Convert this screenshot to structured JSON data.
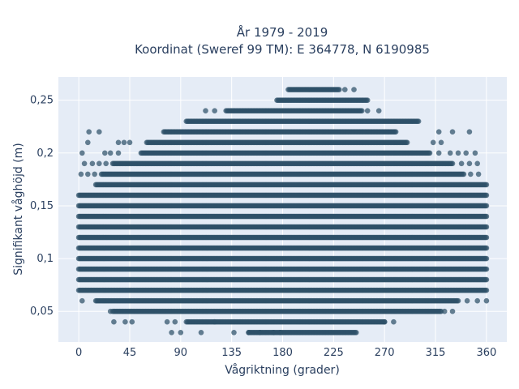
{
  "chart_data": {
    "type": "scatter",
    "title_lines": [
      "År 1979 - 2019",
      "Koordinat (Sweref 99 TM): E 364778, N 6190985"
    ],
    "xlabel": "Vågriktning (grader)",
    "ylabel": "Signifikant våghöjd (m)",
    "xlim": [
      -18,
      378
    ],
    "ylim": [
      0.021,
      0.272
    ],
    "x_ticks": [
      0,
      45,
      90,
      135,
      180,
      225,
      270,
      315,
      360
    ],
    "x_tick_labels": [
      "0",
      "45",
      "90",
      "135",
      "180",
      "225",
      "270",
      "315",
      "360"
    ],
    "y_ticks": [
      0.05,
      0.1,
      0.15,
      0.2,
      0.25
    ],
    "y_tick_labels": [
      "0,05",
      "0,1",
      "0,15",
      "0,2",
      "0,25"
    ],
    "grid": true,
    "marker_color": "#2e5168",
    "background_color": "#e5ecf6",
    "bands": [
      {
        "y": 0.03,
        "x_min": 150,
        "x_max": 245
      },
      {
        "y": 0.04,
        "x_min": 95,
        "x_max": 270
      },
      {
        "y": 0.05,
        "x_min": 30,
        "x_max": 320
      },
      {
        "y": 0.06,
        "x_min": 15,
        "x_max": 335
      },
      {
        "y": 0.07,
        "x_min": 0,
        "x_max": 360
      },
      {
        "y": 0.08,
        "x_min": 0,
        "x_max": 360
      },
      {
        "y": 0.09,
        "x_min": 0,
        "x_max": 360
      },
      {
        "y": 0.1,
        "x_min": 0,
        "x_max": 360
      },
      {
        "y": 0.11,
        "x_min": 0,
        "x_max": 360
      },
      {
        "y": 0.12,
        "x_min": 0,
        "x_max": 360
      },
      {
        "y": 0.13,
        "x_min": 0,
        "x_max": 360
      },
      {
        "y": 0.14,
        "x_min": 0,
        "x_max": 360
      },
      {
        "y": 0.15,
        "x_min": 0,
        "x_max": 360
      },
      {
        "y": 0.16,
        "x_min": 0,
        "x_max": 360
      },
      {
        "y": 0.17,
        "x_min": 15,
        "x_max": 360
      },
      {
        "y": 0.18,
        "x_min": 20,
        "x_max": 340
      },
      {
        "y": 0.19,
        "x_min": 30,
        "x_max": 330
      },
      {
        "y": 0.2,
        "x_min": 55,
        "x_max": 310
      },
      {
        "y": 0.21,
        "x_min": 60,
        "x_max": 290
      },
      {
        "y": 0.22,
        "x_min": 75,
        "x_max": 280
      },
      {
        "y": 0.23,
        "x_min": 95,
        "x_max": 300
      },
      {
        "y": 0.24,
        "x_min": 130,
        "x_max": 250
      },
      {
        "y": 0.25,
        "x_min": 175,
        "x_max": 255
      },
      {
        "y": 0.26,
        "x_min": 185,
        "x_max": 230
      }
    ],
    "sparse_points": [
      {
        "x": 82,
        "y": 0.03
      },
      {
        "x": 90,
        "y": 0.03
      },
      {
        "x": 108,
        "y": 0.03
      },
      {
        "x": 137,
        "y": 0.03
      },
      {
        "x": 150,
        "y": 0.03
      },
      {
        "x": 160,
        "y": 0.03
      },
      {
        "x": 172,
        "y": 0.03
      },
      {
        "x": 178,
        "y": 0.03
      },
      {
        "x": 31,
        "y": 0.04
      },
      {
        "x": 41,
        "y": 0.04
      },
      {
        "x": 47,
        "y": 0.04
      },
      {
        "x": 78,
        "y": 0.04
      },
      {
        "x": 85,
        "y": 0.04
      },
      {
        "x": 120,
        "y": 0.04
      },
      {
        "x": 270,
        "y": 0.04
      },
      {
        "x": 278,
        "y": 0.04
      },
      {
        "x": 28,
        "y": 0.05
      },
      {
        "x": 323,
        "y": 0.05
      },
      {
        "x": 330,
        "y": 0.05
      },
      {
        "x": 3,
        "y": 0.06
      },
      {
        "x": 343,
        "y": 0.06
      },
      {
        "x": 352,
        "y": 0.06
      },
      {
        "x": 360,
        "y": 0.06
      },
      {
        "x": 9,
        "y": 0.22
      },
      {
        "x": 18,
        "y": 0.22
      },
      {
        "x": 318,
        "y": 0.22
      },
      {
        "x": 330,
        "y": 0.22
      },
      {
        "x": 345,
        "y": 0.22
      },
      {
        "x": 8,
        "y": 0.21
      },
      {
        "x": 35,
        "y": 0.21
      },
      {
        "x": 40,
        "y": 0.21
      },
      {
        "x": 45,
        "y": 0.21
      },
      {
        "x": 313,
        "y": 0.21
      },
      {
        "x": 320,
        "y": 0.21
      },
      {
        "x": 3,
        "y": 0.2
      },
      {
        "x": 23,
        "y": 0.2
      },
      {
        "x": 28,
        "y": 0.2
      },
      {
        "x": 35,
        "y": 0.2
      },
      {
        "x": 318,
        "y": 0.2
      },
      {
        "x": 328,
        "y": 0.2
      },
      {
        "x": 335,
        "y": 0.2
      },
      {
        "x": 342,
        "y": 0.2
      },
      {
        "x": 350,
        "y": 0.2
      },
      {
        "x": 5,
        "y": 0.19
      },
      {
        "x": 12,
        "y": 0.19
      },
      {
        "x": 18,
        "y": 0.19
      },
      {
        "x": 24,
        "y": 0.19
      },
      {
        "x": 338,
        "y": 0.19
      },
      {
        "x": 345,
        "y": 0.19
      },
      {
        "x": 352,
        "y": 0.19
      },
      {
        "x": 2,
        "y": 0.18
      },
      {
        "x": 8,
        "y": 0.18
      },
      {
        "x": 14,
        "y": 0.18
      },
      {
        "x": 346,
        "y": 0.18
      },
      {
        "x": 353,
        "y": 0.18
      },
      {
        "x": 112,
        "y": 0.24
      },
      {
        "x": 120,
        "y": 0.24
      },
      {
        "x": 255,
        "y": 0.24
      },
      {
        "x": 265,
        "y": 0.24
      },
      {
        "x": 235,
        "y": 0.26
      },
      {
        "x": 243,
        "y": 0.26
      }
    ]
  }
}
